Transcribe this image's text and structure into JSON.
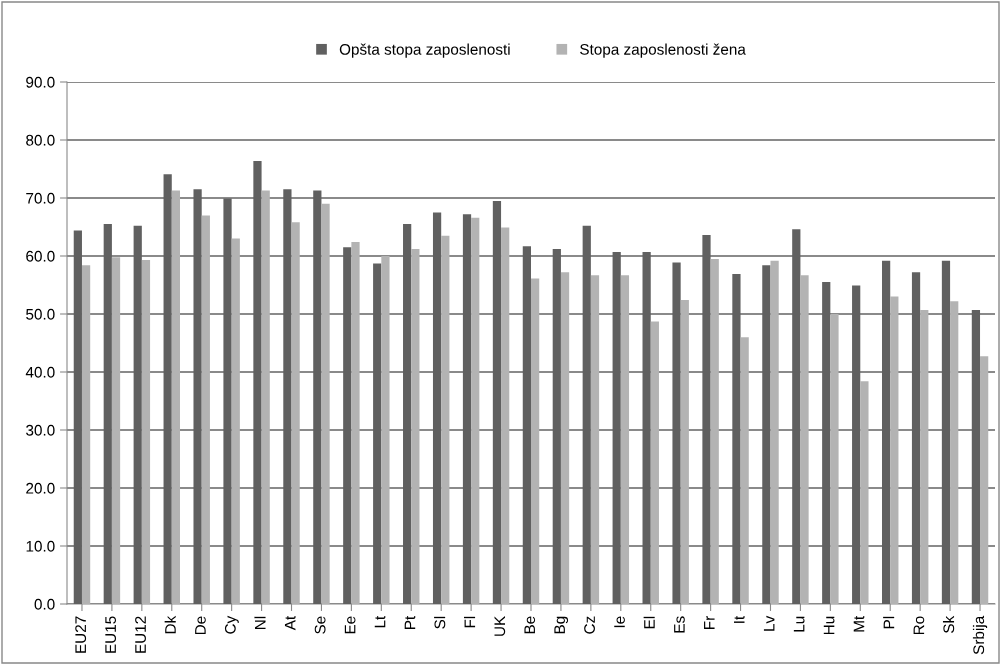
{
  "chart_data": {
    "type": "bar",
    "categories": [
      "EU27",
      "EU15",
      "EU12",
      "Dk",
      "De",
      "Cy",
      "Nl",
      "At",
      "Se",
      "Ee",
      "Lt",
      "Pt",
      "Sl",
      "Fl",
      "UK",
      "Be",
      "Bg",
      "Cz",
      "Ie",
      "El",
      "Es",
      "Fr",
      "It",
      "Lv",
      "Lu",
      "Hu",
      "Mt",
      "Pl",
      "Ro",
      "Sk",
      "Srbija"
    ],
    "series": [
      {
        "name": "Opšta stopa zaposlenosti",
        "color": "#606060",
        "values": [
          64.4,
          65.5,
          65.2,
          74.1,
          71.5,
          69.9,
          76.4,
          71.5,
          71.3,
          61.5,
          58.7,
          65.5,
          67.5,
          67.2,
          69.5,
          61.7,
          61.2,
          65.2,
          60.7,
          60.7,
          58.9,
          63.6,
          56.9,
          58.4,
          64.6,
          55.5,
          54.9,
          59.2,
          57.2,
          59.2,
          50.7
        ]
      },
      {
        "name": "Stopa zaposlenosti žena",
        "color": "#b3b3b3",
        "values": [
          58.4,
          59.8,
          59.3,
          71.3,
          67.0,
          63.0,
          71.3,
          65.8,
          69.0,
          62.4,
          60.0,
          61.2,
          63.5,
          66.6,
          64.9,
          56.1,
          57.2,
          56.7,
          56.7,
          48.7,
          52.4,
          59.5,
          46.0,
          59.2,
          56.7,
          50.0,
          38.4,
          53.0,
          50.7,
          52.2,
          42.7
        ]
      }
    ],
    "ylim": [
      0,
      90
    ],
    "yticks": [
      {
        "value": 0,
        "label": "0.0"
      },
      {
        "value": 10,
        "label": "10.0"
      },
      {
        "value": 20,
        "label": "20.0"
      },
      {
        "value": 30,
        "label": "30.0"
      },
      {
        "value": 40,
        "label": "40.0"
      },
      {
        "value": 50,
        "label": "50.0"
      },
      {
        "value": 60,
        "label": "60.0"
      },
      {
        "value": 70,
        "label": "70.0"
      },
      {
        "value": 80,
        "label": "80.0"
      },
      {
        "value": 90,
        "label": "90.0"
      }
    ],
    "grid": "y",
    "legend": "top"
  }
}
